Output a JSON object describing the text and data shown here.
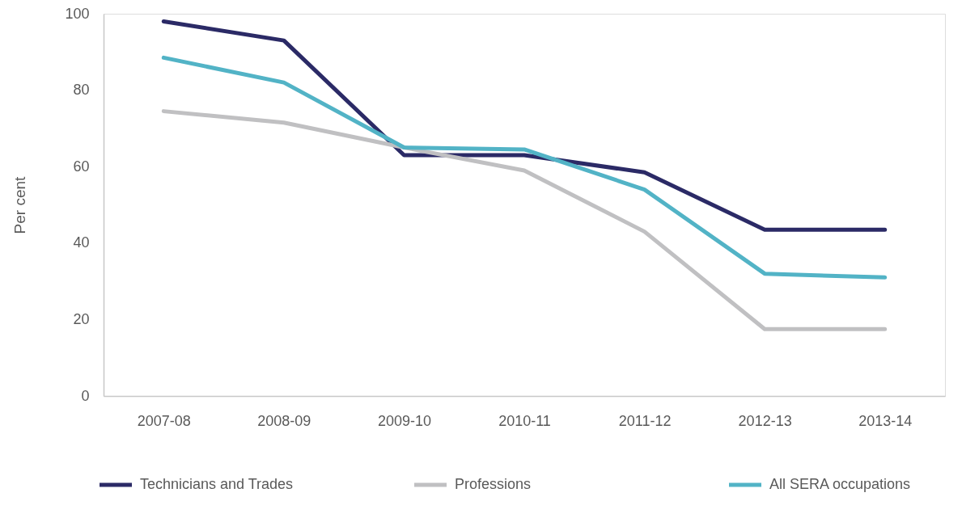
{
  "chart_data": {
    "type": "line",
    "ylabel": "Per cent",
    "categories": [
      "2007-08",
      "2008-09",
      "2009-10",
      "2010-11",
      "2011-12",
      "2012-13",
      "2013-14"
    ],
    "series": [
      {
        "name": "Technicians and Trades",
        "color": "#2b2a66",
        "values": [
          98,
          93,
          63,
          63,
          58.5,
          43.5,
          43.5
        ]
      },
      {
        "name": "Professions",
        "color": "#c0c0c2",
        "values": [
          74.5,
          71.5,
          65,
          59,
          43,
          17.5,
          17.5
        ]
      },
      {
        "name": "All SERA occupations",
        "color": "#52b3c6",
        "values": [
          88.5,
          82,
          65,
          64.5,
          54,
          32,
          31
        ]
      }
    ],
    "ylim": [
      0,
      100
    ],
    "yticks": [
      0,
      20,
      40,
      60,
      80,
      100
    ],
    "legend": "bottom",
    "line_style": "solid"
  }
}
